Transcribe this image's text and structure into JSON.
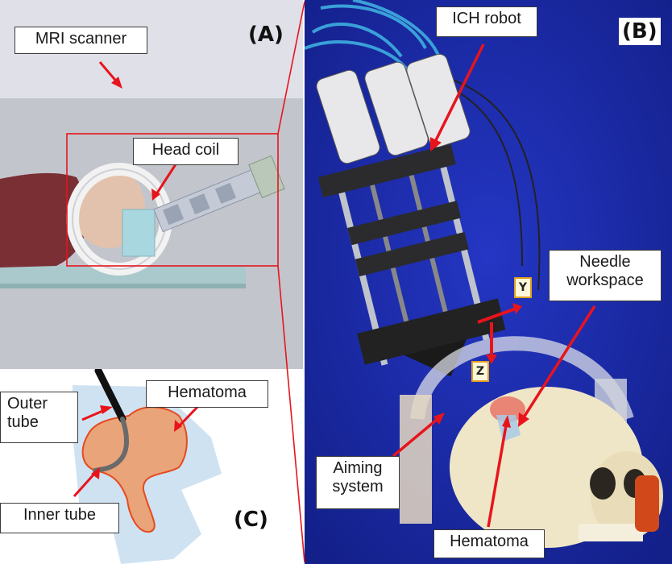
{
  "panel_a": {
    "label": "(A)",
    "callouts": {
      "mri_scanner": "MRI scanner",
      "head_coil": "Head coil"
    }
  },
  "panel_b": {
    "label": "(B)",
    "callouts": {
      "ich_robot": "ICH robot",
      "needle_workspace_line1": "Needle",
      "needle_workspace_line2": "workspace",
      "aiming_system_line1": "Aiming",
      "aiming_system_line2": "system",
      "hematoma": "Hematoma"
    },
    "axes": {
      "y": "Y",
      "z": "Z"
    }
  },
  "panel_c": {
    "label": "(C)",
    "callouts": {
      "outer_tube_line1": "Outer",
      "outer_tube_line2": "tube",
      "hematoma": "Hematoma",
      "inner_tube": "Inner tube"
    }
  },
  "colors": {
    "arrow_red": "#e8141c",
    "robot_background_blue": "#1c2aa8",
    "hematoma_orange": "#e9a47a",
    "scanner_gray": "#c4c6cf"
  }
}
